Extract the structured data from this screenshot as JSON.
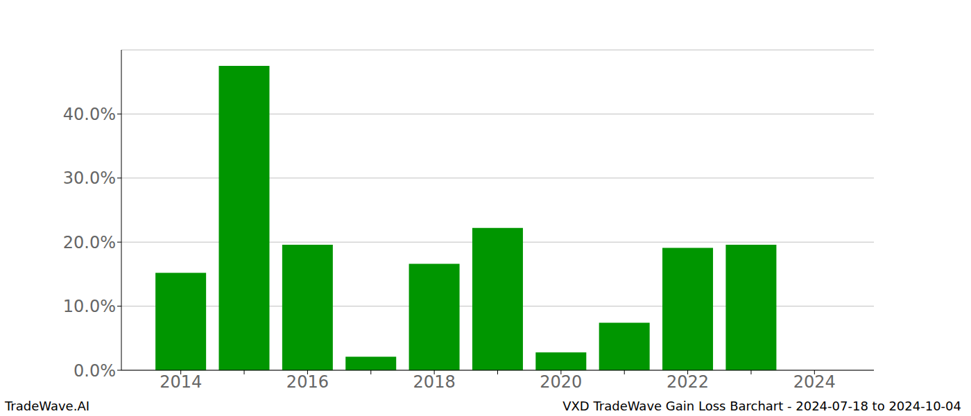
{
  "chart_data": {
    "type": "bar",
    "title": "VXD TradeWave Gain Loss Barchart - 2024-07-18 to 2024-10-04",
    "annotations": [
      "TradeWave.AI"
    ],
    "categories": [
      "2014",
      null,
      "2016",
      null,
      "2018",
      null,
      "2020",
      null,
      "2022",
      null,
      "2024"
    ],
    "values": [
      15.2,
      47.5,
      19.6,
      2.1,
      16.6,
      22.2,
      2.8,
      7.4,
      19.1,
      19.6,
      0
    ],
    "color": "#009600",
    "ylim": [
      0,
      50
    ],
    "yticks": [
      {
        "value": 0,
        "label": "0.0%"
      },
      {
        "value": 10,
        "label": "10.0%"
      },
      {
        "value": 20,
        "label": "20.0%"
      },
      {
        "value": 30,
        "label": "30.0%"
      },
      {
        "value": 40,
        "label": "40.0%"
      }
    ],
    "grid": true
  }
}
